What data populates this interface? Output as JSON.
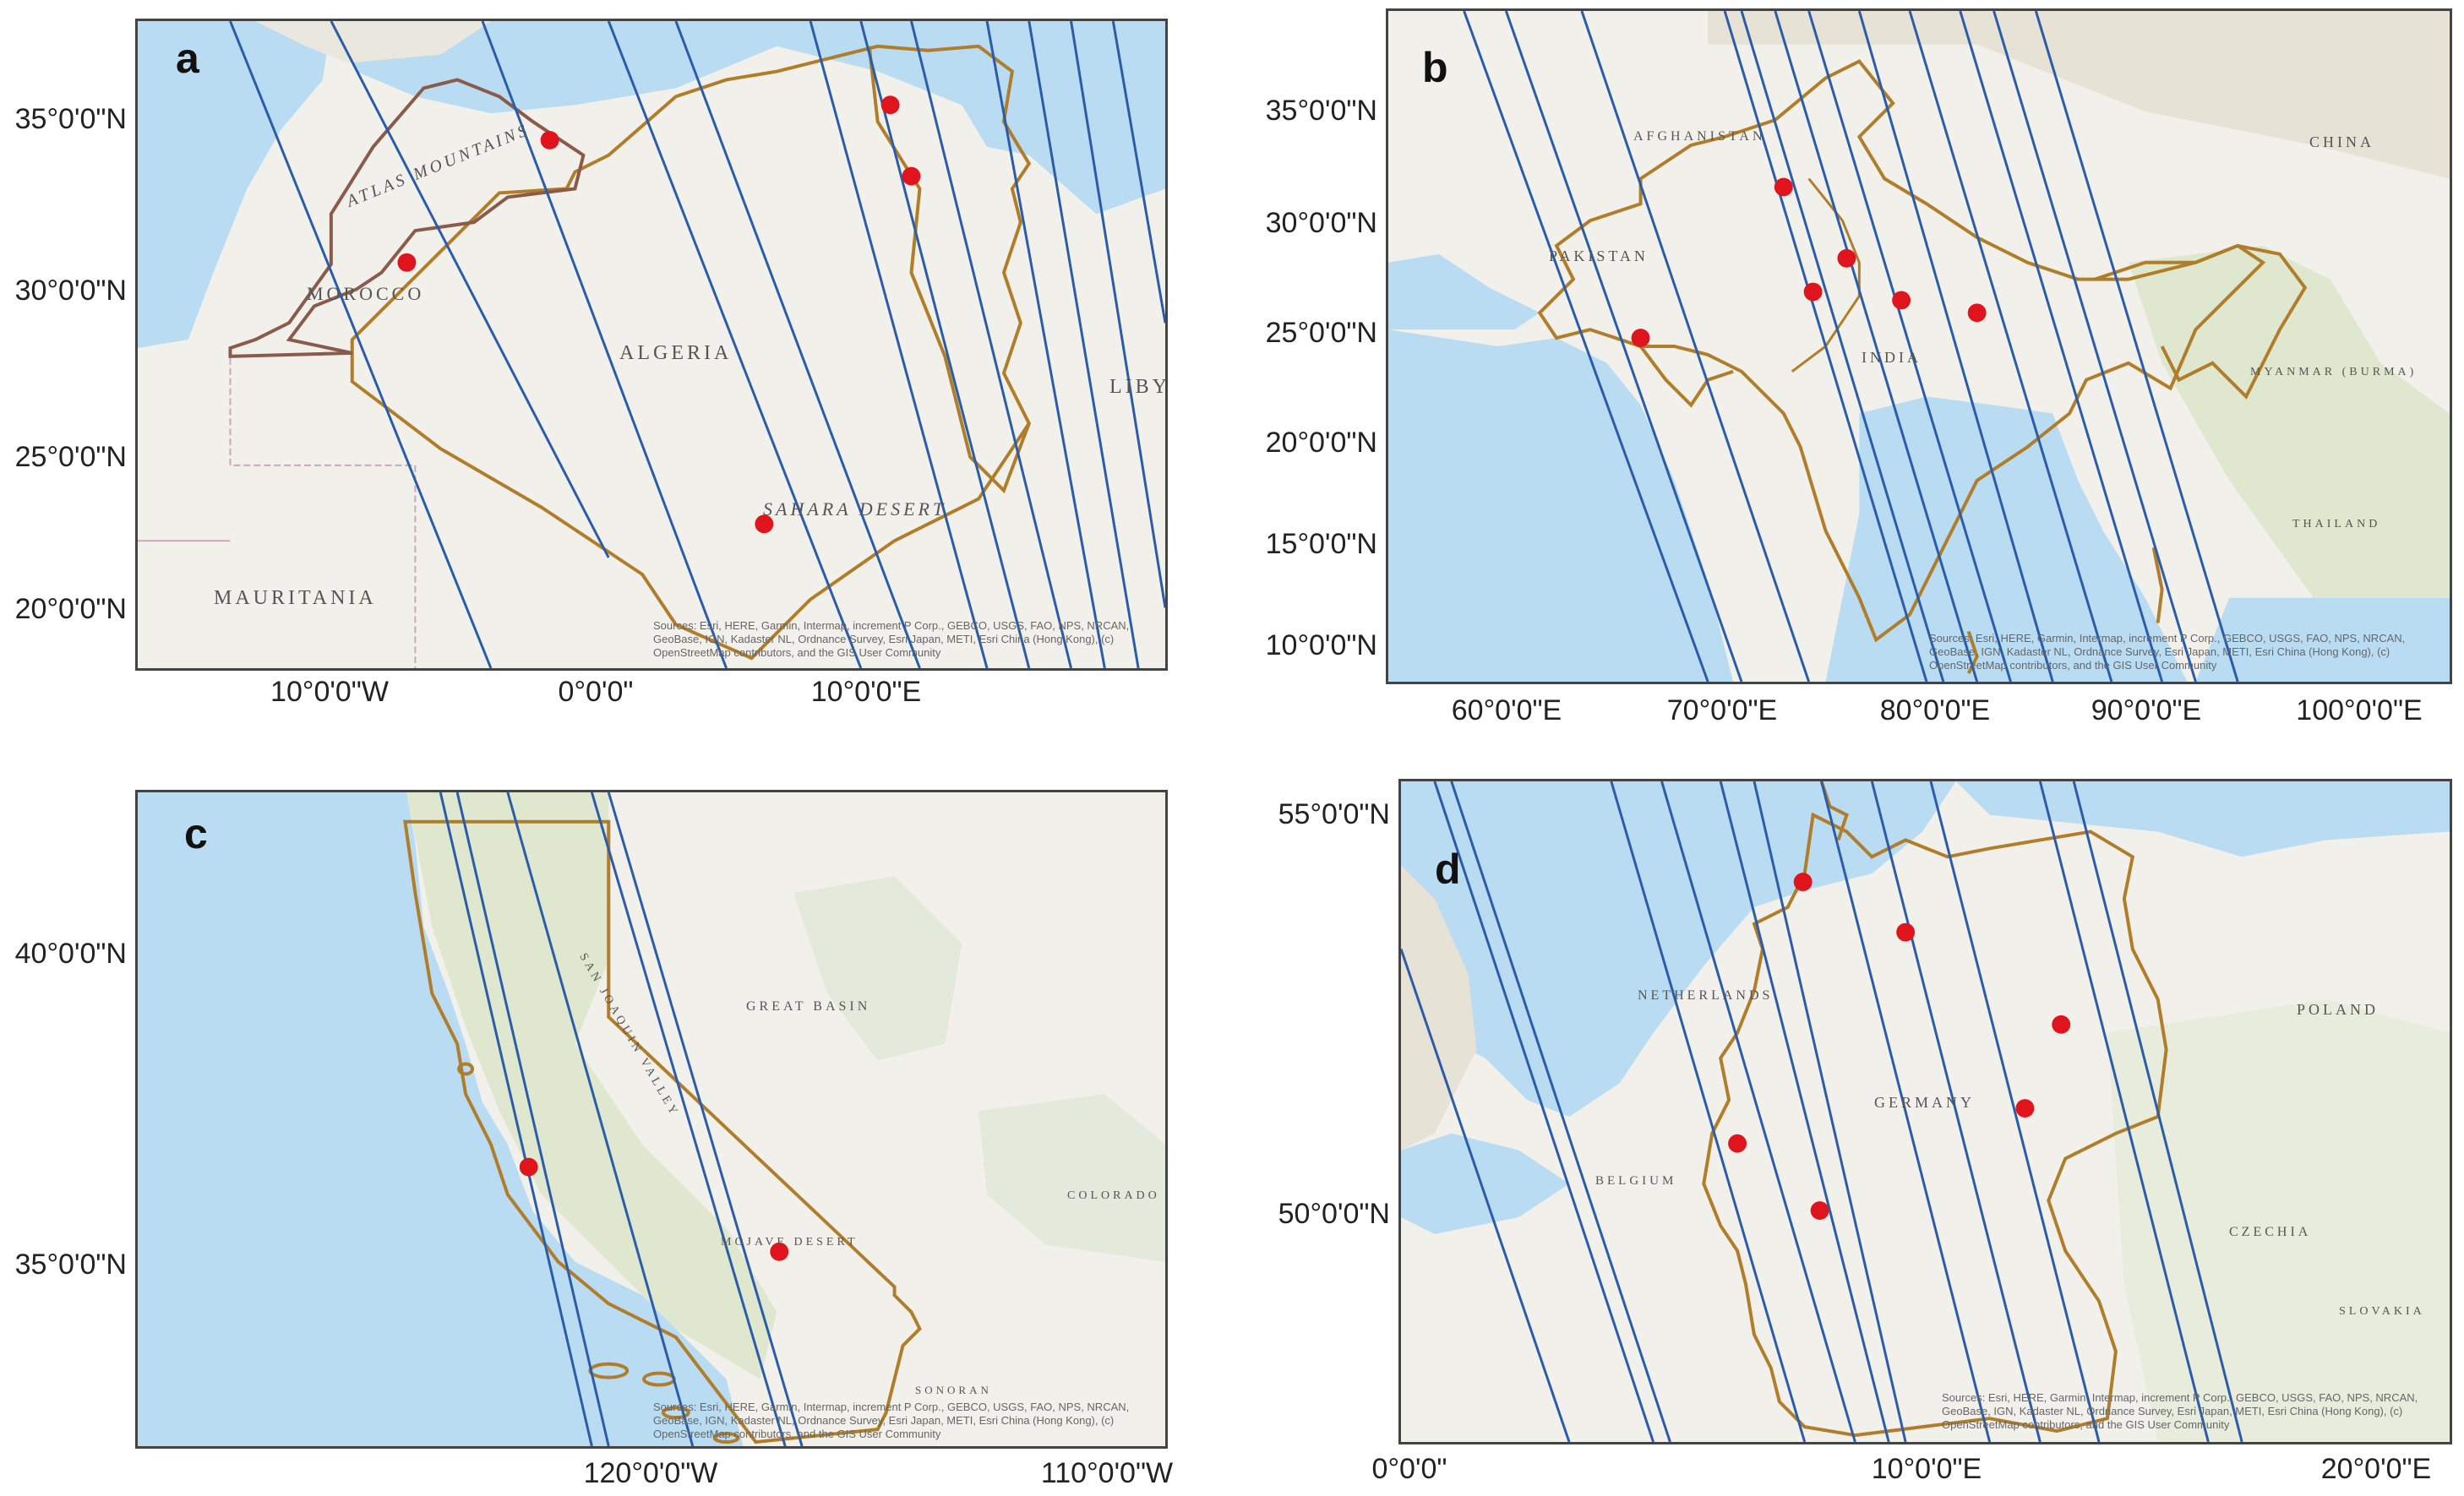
{
  "panels": {
    "a": {
      "label": "a",
      "y_ticks": [
        "35°0'0\"N",
        "30°0'0\"N",
        "25°0'0\"N",
        "20°0'0\"N"
      ],
      "x_ticks": [
        "10°0'0\"W",
        "0°0'0\"",
        "10°0'0\"E"
      ],
      "place_labels": [
        "MOROCCO",
        "ALGERIA",
        "MAURITANIA",
        "LIBYA",
        "ATLAS MOUNTAINS",
        "SAHARA DESERT"
      ],
      "attribution": "Sources: Esri, HERE, Garmin, Intermap, increment P Corp., GEBCO, USGS, FAO, NPS, NRCAN, GeoBase, IGN, Kadaster NL, Ordnance Survey, Esri Japan, METI, Esri China (Hong Kong), (c) OpenStreetMap contributors, and the GIS User Community"
    },
    "b": {
      "label": "b",
      "y_ticks": [
        "35°0'0\"N",
        "30°0'0\"N",
        "25°0'0\"N",
        "20°0'0\"N",
        "15°0'0\"N",
        "10°0'0\"N"
      ],
      "x_ticks": [
        "60°0'0\"E",
        "70°0'0\"E",
        "80°0'0\"E",
        "90°0'0\"E",
        "100°0'0\"E"
      ],
      "place_labels": [
        "AFGHANISTAN",
        "PAKISTAN",
        "INDIA",
        "CHINA",
        "MYANMAR (BURMA)",
        "THAILAND"
      ],
      "attribution": "Sources: Esri, HERE, Garmin, Intermap, increment P Corp., GEBCO, USGS, FAO, NPS, NRCAN, GeoBase, IGN, Kadaster NL, Ordnance Survey, Esri Japan, METI, Esri China (Hong Kong), (c) OpenStreetMap contributors, and the GIS User Community"
    },
    "c": {
      "label": "c",
      "y_ticks": [
        "40°0'0\"N",
        "35°0'0\"N"
      ],
      "x_ticks": [
        "120°0'0\"W",
        "110°0'0\"W"
      ],
      "place_labels": [
        "GREAT BASIN",
        "MOJAVE DESERT",
        "COLORADO PLATEAU",
        "SAN JOAQUIN VALLEY",
        "SONORAN"
      ],
      "attribution": "Sources: Esri, HERE, Garmin, Intermap, increment P Corp., GEBCO, USGS, FAO, NPS, NRCAN, GeoBase, IGN, Kadaster NL, Ordnance Survey, Esri Japan, METI, Esri China (Hong Kong), (c) OpenStreetMap contributors, and the GIS User Community"
    },
    "d": {
      "label": "d",
      "y_ticks": [
        "55°0'0\"N",
        "50°0'0\"N"
      ],
      "x_ticks": [
        "0°0'0\"",
        "10°0'0\"E",
        "20°0'0\"E"
      ],
      "place_labels": [
        "NETHERLANDS",
        "GERMANY",
        "BELGIUM",
        "POLAND",
        "CZECHIA",
        "SLOVAKIA"
      ],
      "attribution": "Sources: Esri, HERE, Garmin, Intermap, increment P Corp., GEBCO, USGS, FAO, NPS, NRCAN, GeoBase, IGN, Kadaster NL, Ordnance Survey, Esri Japan, METI, Esri China (Hong Kong), (c) OpenStreetMap contributors, and the GIS User Community"
    }
  },
  "colors": {
    "land": "#f2f0ea",
    "sea": "#b9dcf2",
    "boundary": "#b07d2a",
    "morocco_boundary": "#8a5a4a",
    "swath": "#2b5ca8",
    "site": "#e0141c",
    "vegetation": "#dfe8cf"
  }
}
